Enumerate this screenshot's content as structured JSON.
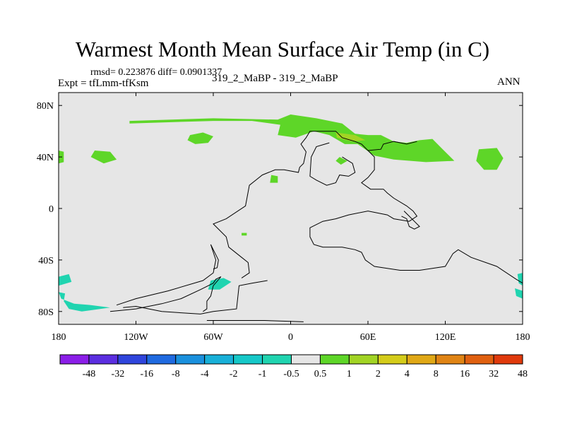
{
  "header": {
    "title": "Warmest Month Mean Surface Air Temp (in C)",
    "stats": "rmsd= 0.223876 diff= 0.0901337",
    "expt": "Expt = tfLmm-tfKsm",
    "subtitle": "319_2_MaBP - 319_2_MaBP",
    "period": "ANN"
  },
  "chart_data": {
    "type": "heatmap",
    "projection": "cylindrical-equidistant",
    "xlim": [
      -180,
      180
    ],
    "ylim": [
      -90,
      90
    ],
    "x_ticks": [
      {
        "value": -180,
        "label": "180"
      },
      {
        "value": -120,
        "label": "120W"
      },
      {
        "value": -60,
        "label": "60W"
      },
      {
        "value": 0,
        "label": "0"
      },
      {
        "value": 60,
        "label": "60E"
      },
      {
        "value": 120,
        "label": "120E"
      },
      {
        "value": 180,
        "label": "180"
      }
    ],
    "y_ticks": [
      {
        "value": 80,
        "label": "80N"
      },
      {
        "value": 40,
        "label": "40N"
      },
      {
        "value": 0,
        "label": "0"
      },
      {
        "value": -40,
        "label": "40S"
      },
      {
        "value": -80,
        "label": "80S"
      }
    ],
    "background_color": "#e6e6e6",
    "colorbar": {
      "levels": [
        "-48",
        "-32",
        "-16",
        "-8",
        "-4",
        "-2",
        "-1",
        "-0.5",
        "0.5",
        "1",
        "2",
        "4",
        "8",
        "16",
        "32",
        "48"
      ],
      "colors": [
        "#8b1ee8",
        "#5b2ee0",
        "#2f45dc",
        "#1f6ae0",
        "#1a90dd",
        "#18b0d8",
        "#16c8c8",
        "#20d4b0",
        "#e6e6e6",
        "#5ed628",
        "#a2d424",
        "#d4cc1a",
        "#e0a816",
        "#e08414",
        "#e06010",
        "#e03a0c"
      ]
    },
    "anomaly_regions": [
      {
        "name": "north-band",
        "class": "0.5 to 1",
        "color": "#5ed628",
        "points": [
          [
            -125,
            68
          ],
          [
            -60,
            70
          ],
          [
            -10,
            69
          ],
          [
            0,
            73
          ],
          [
            20,
            70
          ],
          [
            40,
            66
          ],
          [
            50,
            58
          ],
          [
            60,
            57
          ],
          [
            70,
            57
          ],
          [
            80,
            52
          ],
          [
            90,
            51
          ],
          [
            100,
            53
          ],
          [
            110,
            54
          ],
          [
            118,
            46
          ],
          [
            127,
            37
          ],
          [
            105,
            36
          ],
          [
            80,
            38
          ],
          [
            65,
            41
          ],
          [
            52,
            50
          ],
          [
            42,
            50
          ],
          [
            30,
            57
          ],
          [
            18,
            60
          ],
          [
            4,
            55
          ],
          [
            -10,
            57
          ],
          [
            -8,
            65
          ],
          [
            -30,
            68
          ],
          [
            -60,
            68
          ],
          [
            -125,
            66
          ]
        ]
      },
      {
        "name": "north-band-core",
        "class": "1 to 2",
        "color": "#a2d424",
        "points": [
          [
            35,
            59
          ],
          [
            50,
            57
          ],
          [
            58,
            53
          ],
          [
            48,
            52
          ],
          [
            36,
            55
          ]
        ]
      },
      {
        "name": "bering-patch",
        "class": "0.5 to 1",
        "color": "#5ed628",
        "points": [
          [
            -78,
            57
          ],
          [
            -68,
            59
          ],
          [
            -60,
            56
          ],
          [
            -64,
            51
          ],
          [
            -74,
            50
          ],
          [
            -80,
            53
          ]
        ]
      },
      {
        "name": "mid-pacific-patch",
        "class": "0.5 to 1",
        "color": "#5ed628",
        "points": [
          [
            -152,
            45
          ],
          [
            -140,
            44
          ],
          [
            -135,
            38
          ],
          [
            -145,
            35
          ],
          [
            -155,
            40
          ]
        ]
      },
      {
        "name": "east-pacific-patch",
        "class": "0.5 to 1",
        "color": "#5ed628",
        "points": [
          [
            146,
            46
          ],
          [
            160,
            47
          ],
          [
            165,
            39
          ],
          [
            160,
            30
          ],
          [
            150,
            30
          ],
          [
            144,
            37
          ]
        ]
      },
      {
        "name": "west-edge-patch",
        "class": "0.5 to 1",
        "color": "#5ed628",
        "points": [
          [
            -180,
            45
          ],
          [
            -176,
            44
          ],
          [
            -176,
            36
          ],
          [
            -180,
            35
          ]
        ]
      },
      {
        "name": "atlantic-dot",
        "class": "0.5 to 1",
        "color": "#5ed628",
        "points": [
          [
            -15,
            26
          ],
          [
            -10,
            25
          ],
          [
            -10,
            20
          ],
          [
            -16,
            20
          ]
        ]
      },
      {
        "name": "mid-dot",
        "class": "0.5 to 1",
        "color": "#5ed628",
        "points": [
          [
            38,
            40
          ],
          [
            44,
            37
          ],
          [
            39,
            34
          ],
          [
            35,
            37
          ]
        ]
      },
      {
        "name": "tiny-dot-south",
        "class": "0.5 to 1",
        "color": "#5ed628",
        "points": [
          [
            -38,
            -19
          ],
          [
            -34,
            -19
          ],
          [
            -34,
            -21
          ],
          [
            -38,
            -21
          ]
        ]
      },
      {
        "name": "antarctic-west",
        "class": "-1 to -0.5",
        "color": "#20d4b0",
        "points": [
          [
            -180,
            -53
          ],
          [
            -172,
            -51
          ],
          [
            -170,
            -57
          ],
          [
            -180,
            -60
          ]
        ]
      },
      {
        "name": "antarctic-west-2",
        "class": "-1 to -0.5",
        "color": "#20d4b0",
        "points": [
          [
            -180,
            -65
          ],
          [
            -175,
            -66
          ],
          [
            -176,
            -72
          ],
          [
            -172,
            -78
          ],
          [
            -162,
            -80
          ],
          [
            -140,
            -77
          ],
          [
            -155,
            -75
          ],
          [
            -168,
            -74
          ],
          [
            -178,
            -70
          ]
        ]
      },
      {
        "name": "antarctic-peninsula",
        "class": "-1 to -0.5",
        "color": "#20d4b0",
        "points": [
          [
            -62,
            -56
          ],
          [
            -52,
            -54
          ],
          [
            -46,
            -57
          ],
          [
            -55,
            -63
          ],
          [
            -64,
            -63
          ]
        ]
      },
      {
        "name": "antarctic-east",
        "class": "-1 to -0.5",
        "color": "#20d4b0",
        "points": [
          [
            180,
            -50
          ],
          [
            176,
            -51
          ],
          [
            177,
            -58
          ],
          [
            180,
            -60
          ]
        ]
      },
      {
        "name": "antarctic-east-2",
        "class": "-1 to -0.5",
        "color": "#20d4b0",
        "points": [
          [
            180,
            -64
          ],
          [
            174,
            -62
          ],
          [
            175,
            -68
          ],
          [
            180,
            -70
          ]
        ]
      }
    ],
    "coastlines": [
      {
        "name": "main-continent",
        "points": [
          [
            -38,
            -54
          ],
          [
            -32,
            -50
          ],
          [
            -33,
            -42
          ],
          [
            -38,
            -38
          ],
          [
            -48,
            -30
          ],
          [
            -50,
            -22
          ],
          [
            -60,
            -12
          ],
          [
            -50,
            -8
          ],
          [
            -35,
            2
          ],
          [
            -32,
            18
          ],
          [
            -22,
            26
          ],
          [
            -12,
            30
          ],
          [
            -5,
            30
          ],
          [
            6,
            28
          ],
          [
            7,
            32
          ],
          [
            10,
            35
          ],
          [
            12,
            44
          ],
          [
            8,
            50
          ],
          [
            12,
            55
          ],
          [
            15,
            60
          ],
          [
            35,
            60
          ],
          [
            40,
            55
          ],
          [
            50,
            52
          ],
          [
            55,
            50
          ],
          [
            60,
            45
          ],
          [
            65,
            40
          ],
          [
            65,
            30
          ],
          [
            60,
            24
          ],
          [
            55,
            20
          ],
          [
            62,
            15
          ],
          [
            72,
            15
          ],
          [
            75,
            12
          ],
          [
            80,
            8
          ],
          [
            90,
            2
          ],
          [
            95,
            -2
          ],
          [
            98,
            -6
          ],
          [
            92,
            -10
          ],
          [
            80,
            -8
          ],
          [
            75,
            -5
          ],
          [
            60,
            -2
          ],
          [
            45,
            -5
          ],
          [
            35,
            -8
          ],
          [
            25,
            -10
          ],
          [
            15,
            -15
          ],
          [
            15,
            -22
          ],
          [
            18,
            -28
          ],
          [
            25,
            -30
          ],
          [
            40,
            -30
          ],
          [
            50,
            -32
          ],
          [
            55,
            -34
          ],
          [
            58,
            -40
          ],
          [
            65,
            -45
          ],
          [
            85,
            -48
          ],
          [
            100,
            -48
          ],
          [
            120,
            -45
          ],
          [
            126,
            -35
          ],
          [
            130,
            -32
          ],
          [
            140,
            -38
          ],
          [
            160,
            -45
          ],
          [
            175,
            -55
          ],
          [
            180,
            -58
          ]
        ]
      },
      {
        "name": "north-inset-line",
        "points": [
          [
            30,
            51
          ],
          [
            20,
            48
          ],
          [
            16,
            40
          ],
          [
            15,
            25
          ],
          [
            20,
            22
          ],
          [
            28,
            18
          ],
          [
            35,
            20
          ],
          [
            38,
            26
          ],
          [
            45,
            25
          ],
          [
            50,
            28
          ],
          [
            48,
            35
          ],
          [
            40,
            40
          ]
        ]
      },
      {
        "name": "east-lake",
        "points": [
          [
            88,
            -2
          ],
          [
            92,
            -6
          ],
          [
            96,
            -10
          ],
          [
            100,
            -14
          ],
          [
            96,
            -16
          ],
          [
            92,
            -14
          ],
          [
            90,
            -8
          ],
          [
            86,
            -6
          ]
        ]
      },
      {
        "name": "east-inlet",
        "points": [
          [
            60,
            45
          ],
          [
            70,
            46
          ],
          [
            72,
            50
          ],
          [
            80,
            52
          ],
          [
            90,
            50
          ],
          [
            98,
            52
          ]
        ]
      },
      {
        "name": "west-antarctic",
        "points": [
          [
            -140,
            -80
          ],
          [
            -120,
            -78
          ],
          [
            -100,
            -74
          ],
          [
            -85,
            -70
          ],
          [
            -70,
            -63
          ],
          [
            -60,
            -58
          ],
          [
            -58,
            -55
          ],
          [
            -54,
            -53
          ],
          [
            -60,
            -60
          ],
          [
            -62,
            -68
          ],
          [
            -65,
            -72
          ],
          [
            -65,
            -78
          ],
          [
            -68,
            -80
          ]
        ]
      },
      {
        "name": "south-ridge",
        "points": [
          [
            -60,
            -47
          ],
          [
            -57,
            -46
          ],
          [
            -56,
            -40
          ],
          [
            -60,
            -32
          ],
          [
            -62,
            -28
          ],
          [
            -58,
            -40
          ],
          [
            -60,
            -50
          ],
          [
            -68,
            -56
          ],
          [
            -95,
            -64
          ],
          [
            -120,
            -70
          ],
          [
            -135,
            -75
          ]
        ]
      },
      {
        "name": "south-shelf",
        "points": [
          [
            -130,
            -77
          ],
          [
            -120,
            -76
          ],
          [
            -100,
            -80
          ],
          [
            -70,
            -82
          ],
          [
            -60,
            -80
          ],
          [
            -42,
            -78
          ],
          [
            -40,
            -60
          ],
          [
            -30,
            -58
          ],
          [
            -18,
            -56
          ]
        ]
      },
      {
        "name": "south-edge",
        "points": [
          [
            -65,
            -87
          ],
          [
            -20,
            -87
          ],
          [
            10,
            -88
          ]
        ]
      }
    ]
  }
}
